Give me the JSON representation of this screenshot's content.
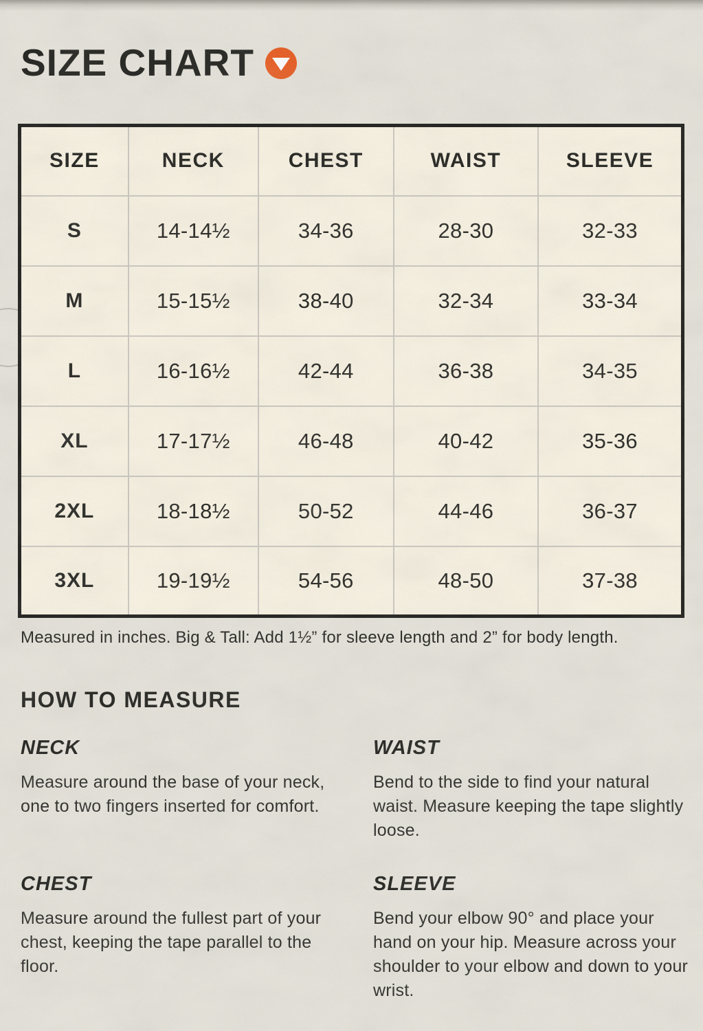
{
  "header": {
    "title": "SIZE CHART",
    "icon": "chevron-down-circle",
    "accent_color": "#e8571a"
  },
  "size_table": {
    "columns": [
      "SIZE",
      "NECK",
      "CHEST",
      "WAIST",
      "SLEEVE"
    ],
    "rows": [
      {
        "size": "S",
        "neck": "14-14½",
        "chest": "34-36",
        "waist": "28-30",
        "sleeve": "32-33"
      },
      {
        "size": "M",
        "neck": "15-15½",
        "chest": "38-40",
        "waist": "32-34",
        "sleeve": "33-34"
      },
      {
        "size": "L",
        "neck": "16-16½",
        "chest": "42-44",
        "waist": "36-38",
        "sleeve": "34-35"
      },
      {
        "size": "XL",
        "neck": "17-17½",
        "chest": "46-48",
        "waist": "40-42",
        "sleeve": "35-36"
      },
      {
        "size": "2XL",
        "neck": "18-18½",
        "chest": "50-52",
        "waist": "44-46",
        "sleeve": "36-37"
      },
      {
        "size": "3XL",
        "neck": "19-19½",
        "chest": "54-56",
        "waist": "48-50",
        "sleeve": "37-38"
      }
    ],
    "note": "Measured in inches. Big & Tall: Add 1½” for sleeve length and 2” for body length.",
    "cell_background": "#f9f3e2",
    "border_color": "#161613",
    "gridline_color": "#cac7bf"
  },
  "how_to_measure": {
    "title": "HOW TO MEASURE",
    "sections": [
      {
        "label": "NECK",
        "text": "Measure around the base of your neck, one to two fingers inserted for comfort."
      },
      {
        "label": "WAIST",
        "text": "Bend to the side to find your natural waist. Measure keeping the tape slightly loose."
      },
      {
        "label": "CHEST",
        "text": "Measure around the fullest part of your chest, keeping the tape parallel to the floor."
      },
      {
        "label": "SLEEVE",
        "text": "Bend your elbow 90° and place your hand on your hip. Measure across your shoulder to your elbow and down to your wrist."
      }
    ]
  }
}
